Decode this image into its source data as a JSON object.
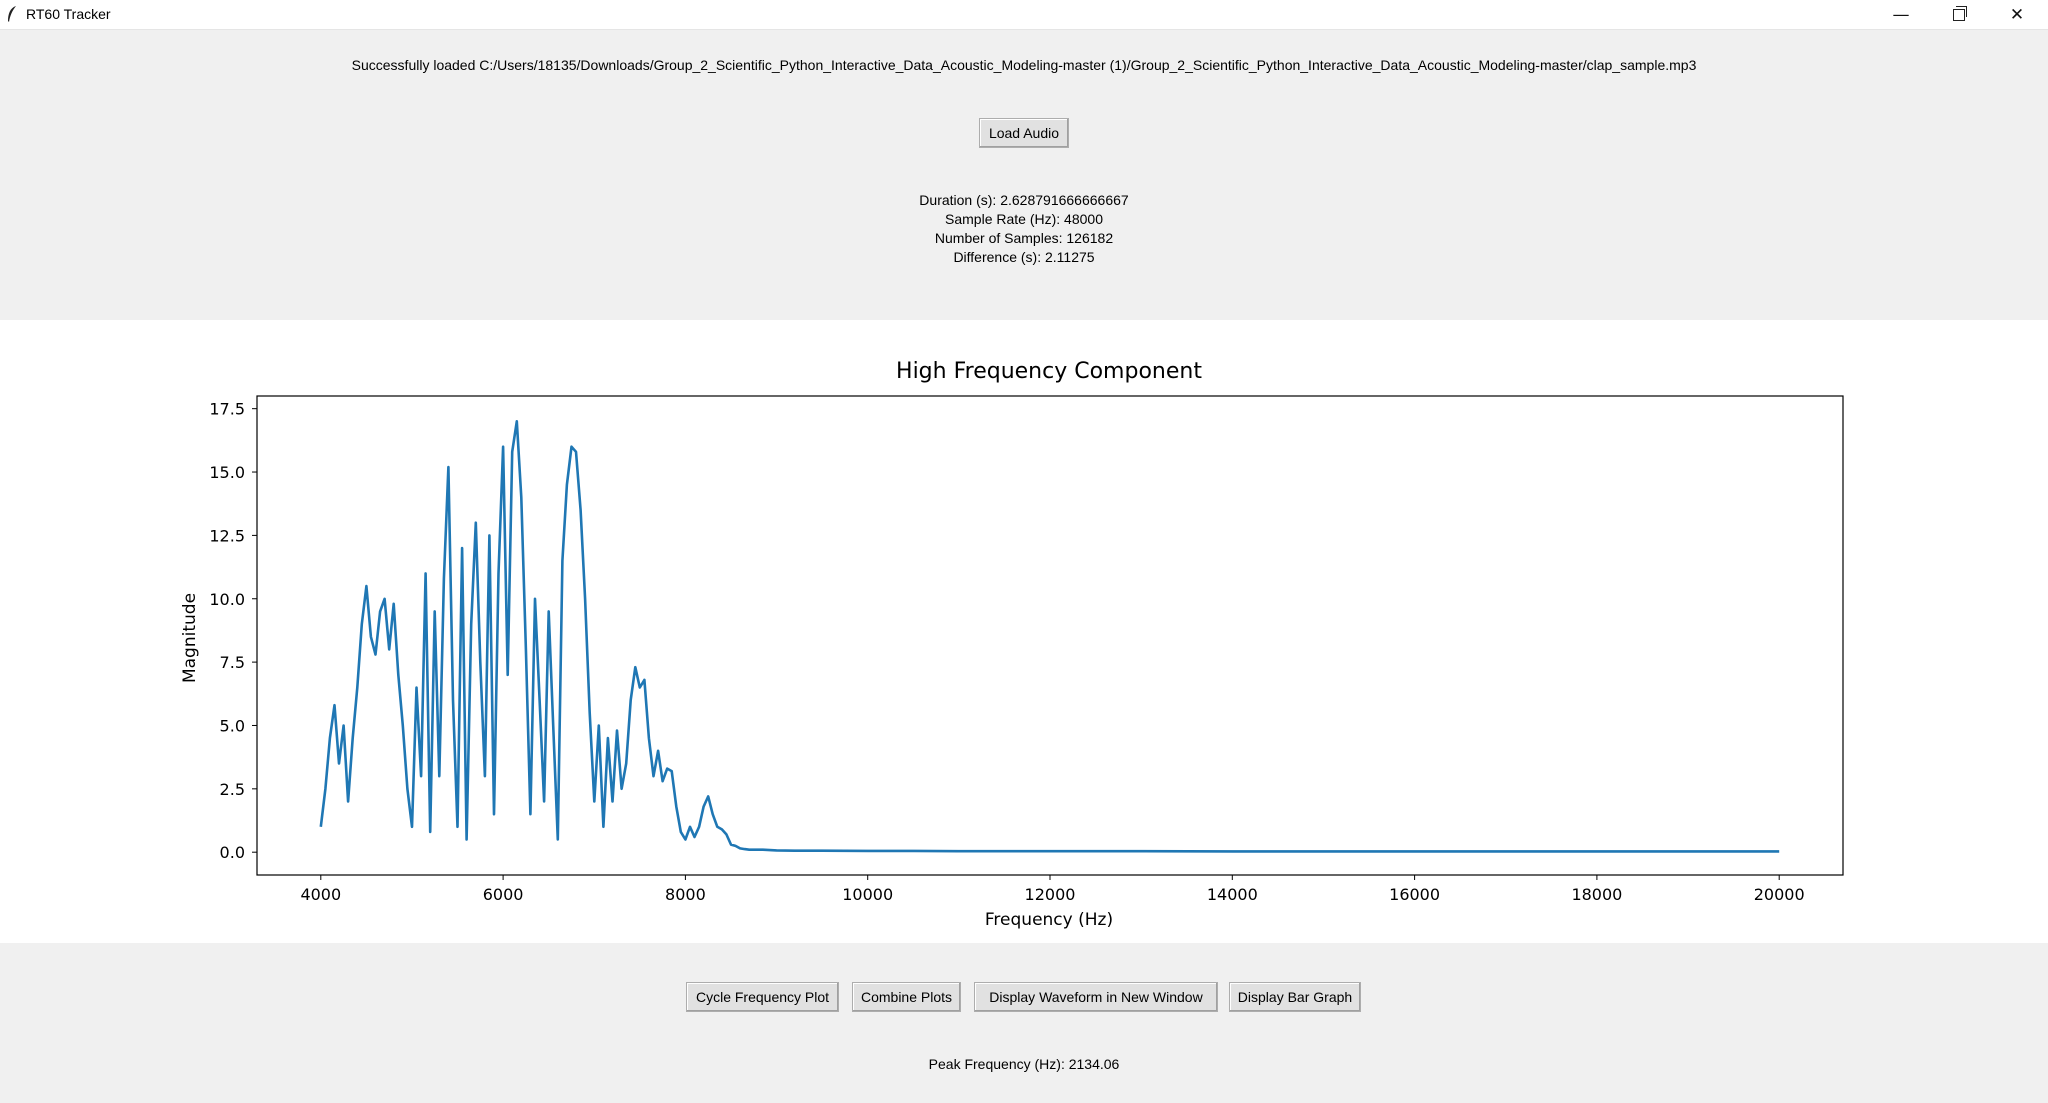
{
  "window": {
    "title": "RT60 Tracker",
    "controls": {
      "minimize": "—",
      "close": "✕"
    }
  },
  "status_message": "Successfully loaded C:/Users/18135/Downloads/Group_2_Scientific_Python_Interactive_Data_Acoustic_Modeling-master (1)/Group_2_Scientific_Python_Interactive_Data_Acoustic_Modeling-master/clap_sample.mp3",
  "load_button": "Load Audio",
  "info": {
    "duration": "Duration (s): 2.628791666666667",
    "sample_rate": "Sample Rate (Hz): 48000",
    "num_samples": "Number of Samples: 126182",
    "difference": "Difference (s): 2.11275"
  },
  "chart_data": {
    "type": "line",
    "title": "High Frequency Component",
    "xlabel": "Frequency (Hz)",
    "ylabel": "Magnitude",
    "xlim": [
      3300,
      20700
    ],
    "ylim": [
      -0.9,
      18.0
    ],
    "xticks": [
      4000,
      6000,
      8000,
      10000,
      12000,
      14000,
      16000,
      18000,
      20000
    ],
    "yticks": [
      "0.0",
      "2.5",
      "5.0",
      "7.5",
      "10.0",
      "12.5",
      "15.0",
      "17.5"
    ],
    "line_color": "#1f77b4",
    "series": [
      {
        "x": [
          4000,
          4050,
          4100,
          4150,
          4200,
          4250,
          4300,
          4350,
          4400,
          4450,
          4500,
          4550,
          4600,
          4650,
          4700,
          4750,
          4800,
          4850,
          4900,
          4950,
          5000,
          5050,
          5100,
          5150,
          5200,
          5250,
          5300,
          5350,
          5400,
          5450,
          5500,
          5550,
          5600,
          5650,
          5700,
          5750,
          5800,
          5850,
          5900,
          5950,
          6000,
          6050,
          6100,
          6150,
          6200,
          6250,
          6300,
          6350,
          6400,
          6450,
          6500,
          6550,
          6600,
          6650,
          6700,
          6750,
          6800,
          6850,
          6900,
          6950,
          7000,
          7050,
          7100,
          7150,
          7200,
          7250,
          7300,
          7350,
          7400,
          7450,
          7500,
          7550,
          7600,
          7650,
          7700,
          7750,
          7800,
          7850,
          7900,
          7950,
          8000,
          8050,
          8100,
          8150,
          8200,
          8250,
          8300,
          8350,
          8400,
          8450,
          8500,
          8550,
          8600,
          8650,
          8700,
          8750,
          8800,
          8850,
          8900,
          8950,
          9000,
          9200,
          9500,
          10000,
          10500,
          11000,
          12000,
          13000,
          14000,
          15000,
          16000,
          17000,
          18000,
          19000,
          20000
        ],
        "y": [
          1.0,
          2.5,
          4.5,
          5.8,
          3.5,
          5.0,
          2.0,
          4.5,
          6.5,
          9.0,
          10.5,
          8.5,
          7.8,
          9.5,
          10.0,
          8.0,
          9.8,
          7.0,
          5.0,
          2.5,
          1.0,
          6.5,
          3.0,
          11.0,
          0.8,
          9.5,
          3.0,
          10.8,
          15.2,
          6.0,
          1.0,
          12.0,
          0.5,
          9.0,
          13.0,
          7.5,
          3.0,
          12.5,
          1.5,
          11.0,
          16.0,
          7.0,
          15.8,
          17.0,
          14.0,
          8.0,
          1.5,
          10.0,
          6.0,
          2.0,
          9.5,
          5.0,
          0.5,
          11.5,
          14.5,
          16.0,
          15.8,
          13.5,
          10.0,
          5.5,
          2.0,
          5.0,
          1.0,
          4.5,
          2.0,
          4.8,
          2.5,
          3.5,
          6.0,
          7.3,
          6.5,
          6.8,
          4.5,
          3.0,
          4.0,
          2.8,
          3.3,
          3.2,
          1.8,
          0.8,
          0.5,
          1.0,
          0.6,
          1.0,
          1.8,
          2.2,
          1.5,
          1.0,
          0.9,
          0.7,
          0.3,
          0.25,
          0.15,
          0.12,
          0.1,
          0.1,
          0.1,
          0.1,
          0.09,
          0.08,
          0.07,
          0.06,
          0.06,
          0.05,
          0.05,
          0.04,
          0.04,
          0.04,
          0.03,
          0.03,
          0.03,
          0.03,
          0.03,
          0.03,
          0.03
        ]
      }
    ]
  },
  "bottom_buttons": {
    "cycle": "Cycle Frequency Plot",
    "combine": "Combine Plots",
    "waveform": "Display Waveform in New Window",
    "bar": "Display Bar Graph"
  },
  "peak_frequency": "Peak Frequency (Hz): 2134.06"
}
